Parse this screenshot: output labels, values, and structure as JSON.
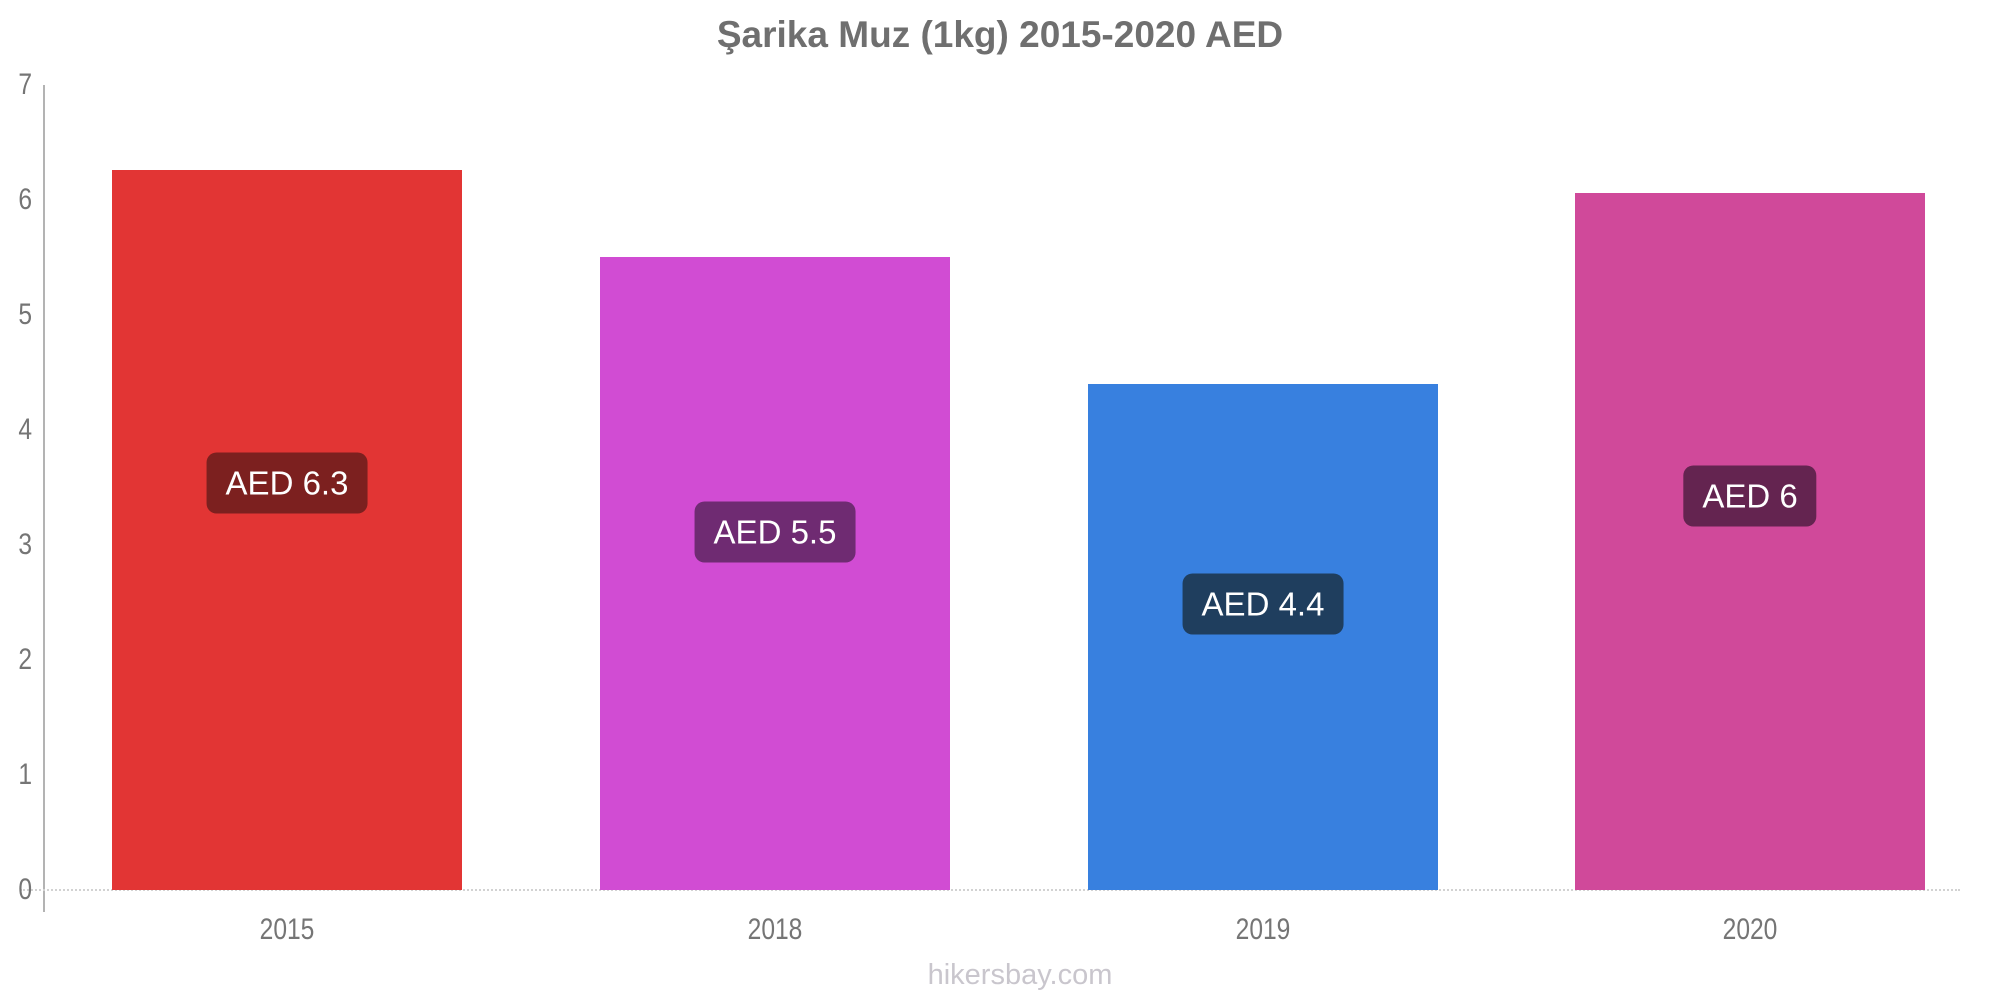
{
  "page": {
    "title": "Şarika Muz (1kg) 2015-2020 AED",
    "footer": "hikersbay.com"
  },
  "chart_data": {
    "type": "bar",
    "title": "Şarika Muz (1kg) 2015-2020 AED",
    "categories": [
      "2015",
      "2018",
      "2019",
      "2020"
    ],
    "values": [
      6.26,
      5.5,
      4.4,
      6.06
    ],
    "value_labels": [
      "AED 6.3",
      "AED 5.5",
      "AED 4.4",
      "AED 6"
    ],
    "bar_colors": [
      "#e23534",
      "#d14cd3",
      "#3880df",
      "#d0499a"
    ],
    "badge_colors": [
      "#7c201f",
      "#6f2b72",
      "#1f3e5e",
      "#642450"
    ],
    "xlabel": "",
    "ylabel": "",
    "ylim": [
      0,
      7
    ],
    "yticks": [
      0,
      1,
      2,
      3,
      4,
      5,
      6,
      7
    ],
    "grid": false,
    "legend": false,
    "axis_color": "#b3b3b3",
    "baseline_color": "#d2d2d2",
    "text_color": "#757575",
    "footer": "hikersbay.com"
  }
}
